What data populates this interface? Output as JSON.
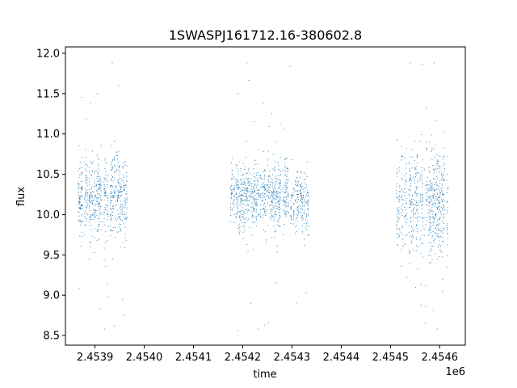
{
  "chart_data": {
    "type": "scatter",
    "title": "1SWASPJ161712.16-380602.8",
    "xlabel": "time",
    "ylabel": "flux",
    "x_offset_label": "1e6",
    "xlim": [
      2453840,
      2454652
    ],
    "ylim": [
      8.38,
      12.08
    ],
    "x_ticks": [
      2453900,
      2454000,
      2454100,
      2454200,
      2454300,
      2454400,
      2454500,
      2454600
    ],
    "x_tick_labels": [
      "2.4539",
      "2.4540",
      "2.4541",
      "2.4542",
      "2.4543",
      "2.4544",
      "2.4545",
      "2.4546"
    ],
    "y_ticks": [
      8.5,
      9.0,
      9.5,
      10.0,
      10.5,
      11.0,
      11.5,
      12.0
    ],
    "y_tick_labels": [
      "8.5",
      "9.0",
      "9.5",
      "10.0",
      "10.5",
      "11.0",
      "11.5",
      "12.0"
    ],
    "grid": false,
    "marker_color": "#1f77b4",
    "series": [
      {
        "name": "",
        "clusters": [
          {
            "t_start": 2453866,
            "t_end": 2453966,
            "flux_center": 10.2,
            "flux_spread": 0.22
          },
          {
            "t_start": 2454175,
            "t_end": 2454334,
            "flux_center": 10.2,
            "flux_spread": 0.2
          },
          {
            "t_start": 2454512,
            "t_end": 2454618,
            "flux_center": 10.15,
            "flux_spread": 0.32
          }
        ],
        "points": [
          {
            "x": 2453905,
            "y": 11.5
          },
          {
            "x": 2453935,
            "y": 11.88
          },
          {
            "x": 2453948,
            "y": 11.6
          },
          {
            "x": 2453920,
            "y": 8.58
          },
          {
            "x": 2453939,
            "y": 8.62
          },
          {
            "x": 2453960,
            "y": 8.75
          },
          {
            "x": 2453868,
            "y": 9.08
          },
          {
            "x": 2453910,
            "y": 8.83
          },
          {
            "x": 2453956,
            "y": 8.95
          },
          {
            "x": 2454190,
            "y": 11.5
          },
          {
            "x": 2454208,
            "y": 11.88
          },
          {
            "x": 2454242,
            "y": 11.38
          },
          {
            "x": 2454296,
            "y": 11.84
          },
          {
            "x": 2454190,
            "y": 8.56
          },
          {
            "x": 2454232,
            "y": 8.58
          },
          {
            "x": 2454245,
            "y": 8.63
          },
          {
            "x": 2454252,
            "y": 8.66
          },
          {
            "x": 2454216,
            "y": 8.9
          },
          {
            "x": 2454540,
            "y": 11.88
          },
          {
            "x": 2454565,
            "y": 11.86
          },
          {
            "x": 2454588,
            "y": 11.88
          },
          {
            "x": 2454562,
            "y": 8.88
          },
          {
            "x": 2454571,
            "y": 8.65
          },
          {
            "x": 2454587,
            "y": 8.81
          },
          {
            "x": 2454595,
            "y": 8.58
          },
          {
            "x": 2454606,
            "y": 9.05
          }
        ]
      }
    ]
  }
}
